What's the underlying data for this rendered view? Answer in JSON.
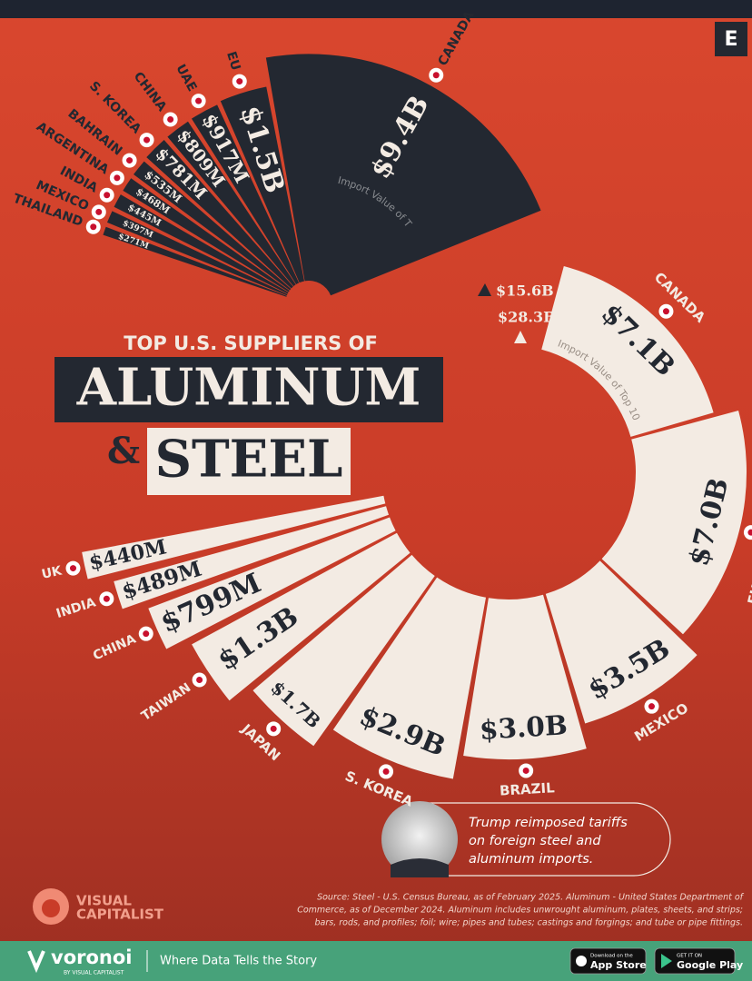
{
  "logo_letter": "E",
  "title": {
    "line1": "TOP U.S. SUPPLIERS OF",
    "word1": "ALUMINUM",
    "amp": "&",
    "word2": "STEEL"
  },
  "chart_data": [
    {
      "type": "radial",
      "categories": [
        "CANADA",
        "EU",
        "UAE",
        "CHINA",
        "S. KOREA",
        "BAHRAIN",
        "ARGENTINA",
        "INDIA",
        "MEXICO",
        "THAILAND"
      ],
      "values": [
        9400000000,
        1500000000,
        917000000,
        809000000,
        781000000,
        535000000,
        468000000,
        445000000,
        397000000,
        271000000
      ],
      "value_labels": [
        "$9.4B",
        "$1.5B",
        "$917M",
        "$809M",
        "$781M",
        "$535M",
        "$468M",
        "$445M",
        "$397M",
        "$271M"
      ],
      "total": {
        "value": 15600000000,
        "label": "$15.6B"
      },
      "total_caption": "Import Value of Top 10",
      "color": "#232831",
      "value_label_color": "#f3ebe3",
      "name_color": "#232831"
    },
    {
      "type": "radial",
      "categories": [
        "CANADA",
        "EUROPEAN UNION",
        "MEXICO",
        "BRAZIL",
        "S. KOREA",
        "JAPAN",
        "TAIWAN",
        "CHINA",
        "INDIA",
        "UK"
      ],
      "values": [
        7100000000,
        7000000000,
        3500000000,
        3000000000,
        2900000000,
        1700000000,
        1300000000,
        799000000,
        489000000,
        440000000
      ],
      "value_labels": [
        "$7.1B",
        "$7.0B",
        "$3.5B",
        "$3.0B",
        "$2.9B",
        "$1.7B",
        "$1.3B",
        "$799M",
        "$489M",
        "$440M"
      ],
      "total": {
        "value": 28300000000,
        "label": "$28.3B"
      },
      "total_caption": "Import Value of Top 10",
      "color": "#f3ebe3",
      "value_label_color": "#232831",
      "name_color": "#f3ebe3"
    }
  ],
  "annotation": [
    "Trump reimposed tariffs",
    "on foreign steel and",
    "aluminum imports."
  ],
  "source": [
    "Source: Steel - U.S. Census Bureau, as of February 2025. Aluminum - United States Department of",
    "Commerce, as of December 2024. Aluminum includes unwrought aluminum, plates, sheets, and strips;",
    "bars, rods, and profiles; foil; wire; pipes and tubes; castings and forgings; and tube or pipe fittings."
  ],
  "brand": [
    "VISUAL",
    "CAPITALIST"
  ],
  "footer": {
    "logo": "voronoi",
    "by": "BY VISUAL CAPITALIST",
    "tagline": "Where Data Tells the Story",
    "app_store": [
      "Download on the",
      "App Store"
    ],
    "google_play": [
      "GET IT ON",
      "Google Play"
    ]
  }
}
